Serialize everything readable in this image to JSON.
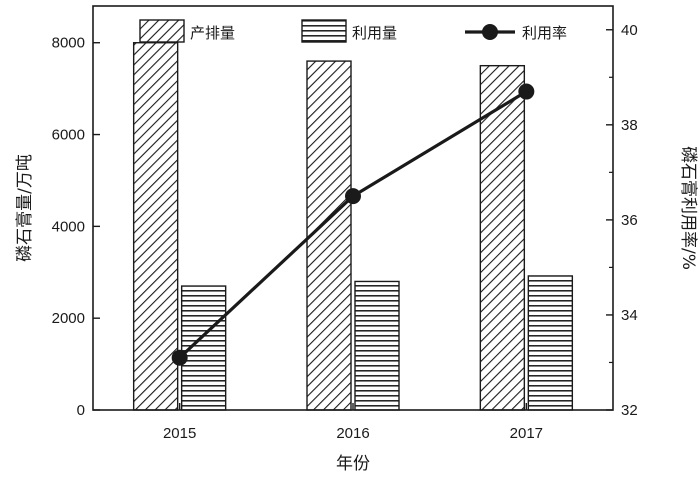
{
  "chart_data": {
    "type": "bar",
    "categories": [
      "2015",
      "2016",
      "2017"
    ],
    "series": [
      {
        "name": "产排量",
        "axis": "left",
        "kind": "bar",
        "pattern": "diagonal-hatch",
        "values": [
          8000,
          7600,
          7500
        ]
      },
      {
        "name": "利用量",
        "axis": "left",
        "kind": "bar",
        "pattern": "horizontal-hatch",
        "values": [
          2700,
          2800,
          2920
        ]
      },
      {
        "name": "利用率",
        "axis": "right",
        "kind": "line",
        "marker": "filled-circle",
        "values": [
          33.1,
          36.5,
          38.7
        ]
      }
    ],
    "xlabel": "年份",
    "ylabel": "磷石膏量/万吨",
    "y2label": "磷石膏利用率/%",
    "ylim": [
      0,
      8800
    ],
    "yticks": [
      "0",
      "2000",
      "4000",
      "6000",
      "8000"
    ],
    "y2lim": [
      32,
      40.5
    ],
    "y2ticks": [
      "32",
      "34",
      "36",
      "38",
      "40"
    ],
    "legend_position": "top",
    "grid": false
  },
  "colors": {
    "ink": "#1a1a1a",
    "background": "#ffffff"
  }
}
